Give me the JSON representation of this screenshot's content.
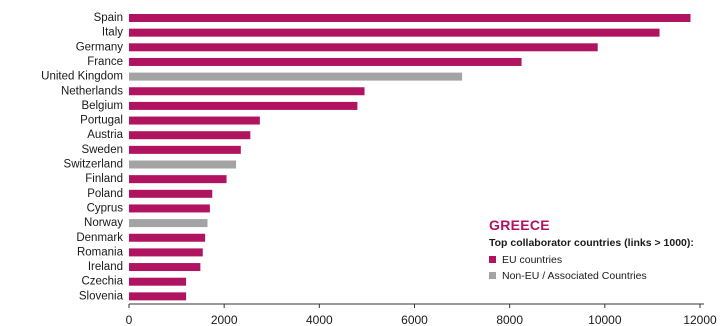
{
  "chart_data": {
    "type": "bar",
    "orientation": "horizontal",
    "categories": [
      "Spain",
      "Italy",
      "Germany",
      "France",
      "United Kingdom",
      "Netherlands",
      "Belgium",
      "Portugal",
      "Austria",
      "Sweden",
      "Switzerland",
      "Finland",
      "Poland",
      "Cyprus",
      "Norway",
      "Denmark",
      "Romania",
      "Ireland",
      "Czechia",
      "Slovenia"
    ],
    "values": [
      11800,
      11150,
      9850,
      8250,
      7000,
      4950,
      4800,
      2750,
      2550,
      2350,
      2250,
      2050,
      1750,
      1700,
      1650,
      1600,
      1550,
      1500,
      1200,
      1200
    ],
    "groups": [
      "EU",
      "EU",
      "EU",
      "EU",
      "Non-EU",
      "EU",
      "EU",
      "EU",
      "EU",
      "EU",
      "Non-EU",
      "EU",
      "EU",
      "EU",
      "Non-EU",
      "EU",
      "EU",
      "EU",
      "EU",
      "EU"
    ],
    "xlim": [
      0,
      12000
    ],
    "x_ticks": [
      0,
      2000,
      4000,
      6000,
      8000,
      10000,
      12000
    ],
    "grid": false,
    "legend_position": "bottom-right",
    "colors": {
      "EU": "#b0135f",
      "Non-EU": "#a3a3a3"
    }
  },
  "legend": {
    "title": "GREECE",
    "subtitle": "Top collaborator countries (links > 1000):",
    "items": [
      {
        "label": "EU countries",
        "color": "#b0135f"
      },
      {
        "label": "Non-EU / Associated Countries",
        "color": "#a3a3a3"
      }
    ]
  }
}
